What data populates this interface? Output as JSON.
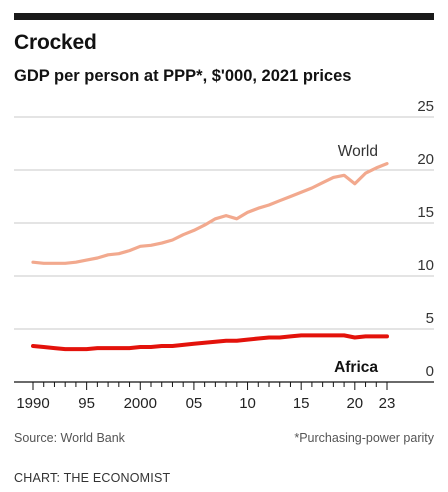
{
  "title": "Crocked",
  "subtitle": "GDP per person at PPP*, $'000, 2021 prices",
  "source": "Source: World Bank",
  "footnote": "*Purchasing-power parity",
  "credit": "CHART: THE ECONOMIST",
  "chart_data": {
    "type": "line",
    "ylim": [
      0,
      25
    ],
    "xlim": [
      1990,
      2023
    ],
    "yticks": [
      0,
      5,
      10,
      15,
      20,
      25
    ],
    "ytick_labels": [
      "0",
      "5",
      "10",
      "15",
      "20",
      "25"
    ],
    "xticks": [
      1990,
      1995,
      2000,
      2005,
      2010,
      2015,
      2020,
      2023
    ],
    "xtick_labels": [
      "1990",
      "95",
      "2000",
      "05",
      "10",
      "15",
      "20",
      "23"
    ],
    "grid": true,
    "series": [
      {
        "name": "World",
        "color": "#f2a98e",
        "x": [
          1990,
          1991,
          1992,
          1993,
          1994,
          1995,
          1996,
          1997,
          1998,
          1999,
          2000,
          2001,
          2002,
          2003,
          2004,
          2005,
          2006,
          2007,
          2008,
          2009,
          2010,
          2011,
          2012,
          2013,
          2014,
          2015,
          2016,
          2017,
          2018,
          2019,
          2020,
          2021,
          2022,
          2023
        ],
        "y": [
          11.3,
          11.2,
          11.2,
          11.2,
          11.3,
          11.5,
          11.7,
          12.0,
          12.1,
          12.4,
          12.8,
          12.9,
          13.1,
          13.4,
          13.9,
          14.3,
          14.8,
          15.4,
          15.7,
          15.4,
          16.0,
          16.4,
          16.7,
          17.1,
          17.5,
          17.9,
          18.3,
          18.8,
          19.3,
          19.5,
          18.7,
          19.7,
          20.2,
          20.6
        ]
      },
      {
        "name": "Africa",
        "color": "#e3120b",
        "x": [
          1990,
          1991,
          1992,
          1993,
          1994,
          1995,
          1996,
          1997,
          1998,
          1999,
          2000,
          2001,
          2002,
          2003,
          2004,
          2005,
          2006,
          2007,
          2008,
          2009,
          2010,
          2011,
          2012,
          2013,
          2014,
          2015,
          2016,
          2017,
          2018,
          2019,
          2020,
          2021,
          2022,
          2023
        ],
        "y": [
          3.4,
          3.3,
          3.2,
          3.1,
          3.1,
          3.1,
          3.2,
          3.2,
          3.2,
          3.2,
          3.3,
          3.3,
          3.4,
          3.4,
          3.5,
          3.6,
          3.7,
          3.8,
          3.9,
          3.9,
          4.0,
          4.1,
          4.2,
          4.2,
          4.3,
          4.4,
          4.4,
          4.4,
          4.4,
          4.4,
          4.2,
          4.3,
          4.3,
          4.3
        ]
      }
    ]
  }
}
